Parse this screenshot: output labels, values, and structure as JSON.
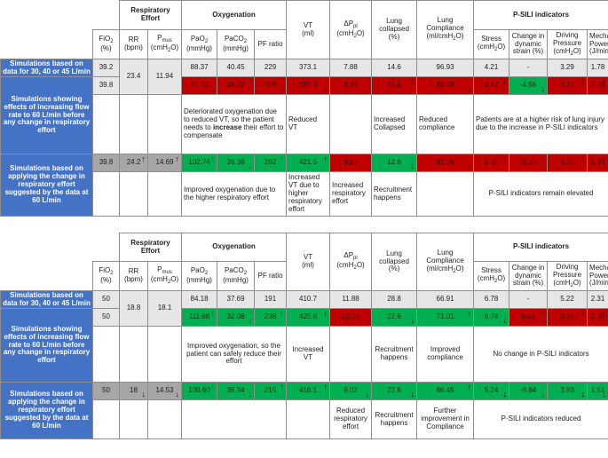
{
  "headers": {
    "resp_effort": "Respiratory Effort",
    "oxygenation": "Oxygenation",
    "psili": "P-SILI indicators",
    "fio2": "FiO",
    "fio2_sub": "2",
    "fio2_unit": "(%)",
    "rr": "RR (bpm)",
    "pmus": "P",
    "pmus_sub": "mus",
    "pmus_unit": "(cmH",
    "pmus_unit2": "O)",
    "pao2": "PaO",
    "pao2_unit": "(mmHg)",
    "paco2": "PaCO",
    "paco2_unit": "(mmHg)",
    "pf": "PF ratio",
    "vt": "VT",
    "vt_unit": "(ml)",
    "dpl": "ΔP",
    "dpl_sub": "pl",
    "dpl_unit": "(cmH",
    "dpl_unit2": "O)",
    "lung_col": "Lung collapsed (%)",
    "lung_comp": "Lung Compliance (ml/cmH",
    "lung_comp2": "O)",
    "stress": "Stress (cmH",
    "stress2": "O)",
    "strain": "Change in dynamic strain (%)",
    "dp": "Driving Pressure (cmH",
    "dp2": "O)",
    "mp": "Mechanical Power (J/min)",
    "sub2": "2"
  },
  "labels": {
    "based": "Simulations based on data for 30, 40 or 45 L/min",
    "showing": "Simulations showing effects of increasing flow rate to 60 L/min before any change in respiratory effort",
    "applying": "Simulations based on applying the change in respiratory effort suggested by the data at 60 L/min"
  },
  "t1": {
    "r1": {
      "fio2": "39.2",
      "rr": "23.4",
      "pmus": "11.94",
      "pao2": "88.37",
      "paco2": "40.45",
      "pf": "229",
      "vt": "373.1",
      "dpl": "7.88",
      "col": "14.6",
      "comp": "96.93",
      "stress": "4.21",
      "strain": "-",
      "dp": "3.29",
      "mp": "1.78"
    },
    "r2": {
      "fio2": "39.8",
      "pao2": "81.74",
      "paco2": "46.02",
      "pf": "208",
      "vt": "355.9",
      "dpl": "8.38",
      "col": "15.4",
      "comp": "84.28",
      "stress": "4.67",
      "strain": "-4.56",
      "dp": "3.33",
      "mp": "2.25"
    },
    "d1": {
      "oxy_a": "Deteriorated oxygenation due to reduced VT, so the patient needs to ",
      "oxy_b": "increase",
      "oxy_c": " their effort to compensate",
      "vt": "Reduced VT",
      "col": "Increased Collapsed",
      "comp": "Reduced compliance",
      "psili": "Patients are at a higher risk of lung injury due to the increase in P-SILI indicators"
    },
    "r3": {
      "fio2": "39.8",
      "rr": "24.2",
      "pmus": "14.69",
      "pao2": "102.74",
      "paco2": "39.36",
      "pf": "262",
      "vt": "421.5",
      "dpl": "9.87",
      "col": "12.6",
      "comp": "91.06",
      "stress": "5.37",
      "strain": "16.35",
      "dp": "4.33",
      "mp": "2.96"
    },
    "d2": {
      "oxy": "Improved oxygenation due to the higher respiratory effort",
      "vt": "Increased VT due to higher respiratory effort",
      "dpl": "Increased respiratory effort",
      "col": "Recruitment happens",
      "psili": "P-SILI indicators remain elevated"
    }
  },
  "t2": {
    "r1": {
      "fio2": "50",
      "rr": "18.8",
      "pmus": "18.1",
      "pao2": "84.18",
      "paco2": "37.69",
      "pf": "191",
      "vt": "410.7",
      "dpl": "11.88",
      "col": "28.8",
      "comp": "66.91",
      "stress": "6.78",
      "strain": "-",
      "dp": "5.22",
      "mp": "2.31"
    },
    "r2": {
      "fio2": "50",
      "pao2": "111.68",
      "paco2": "32.08",
      "pf": "238",
      "vt": "425.8",
      "dpl": "12.35",
      "col": "22.6",
      "comp": "71.01",
      "stress": "6.74",
      "strain": "5.02",
      "dp": "5.38",
      "mp": "2.36"
    },
    "d1": {
      "oxy": "Improved oxygenation, so the patient can safely reduce their effort",
      "vt": "Increased VT",
      "col": "Recruitment happens",
      "comp": "Improved compliance",
      "psili": "No change in P-SILI indicators"
    },
    "r3": {
      "fio2": "50",
      "rr": "18",
      "pmus": "14.53",
      "pao2": "100.60",
      "paco2": "36.94",
      "pf": "215",
      "vt": "416.1",
      "dpl": "9.02",
      "col": "22.6",
      "comp": "86.45",
      "stress": "5.24",
      "strain": "-8.84",
      "dp": "3.93",
      "mp": "1.51"
    },
    "d2": {
      "dpl": "Reduced respiratory effort",
      "col": "Recruitment happens",
      "comp": "Further improvement in Compliance",
      "psili": "P-SILI indicators reduced"
    }
  },
  "arrows": {
    "up": "↑",
    "down": "↓"
  },
  "colors": {
    "label_bg": "#4472c4",
    "red": "#c00000",
    "green": "#00b050",
    "gray": "#e6e6e6",
    "dark_gray": "#a6a6a6"
  }
}
